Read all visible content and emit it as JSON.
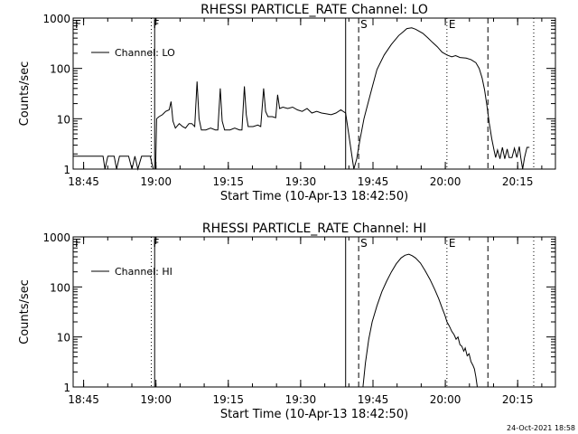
{
  "footer": {
    "timestamp": "24-Oct-2021 18:58"
  },
  "chart_data": [
    {
      "type": "line",
      "title": "RHESSI PARTICLE_RATE Channel: LO",
      "xlabel": "Start Time (10-Apr-13 18:42:50)",
      "ylabel": "Counts/sec",
      "x_unit": "minutes since 18:42:50",
      "xlim": [
        0,
        100
      ],
      "ylim": [
        1,
        1000
      ],
      "yscale": "log",
      "x_ticks": [
        {
          "x": 2.17,
          "label": "18:45"
        },
        {
          "x": 17.17,
          "label": "19:00"
        },
        {
          "x": 32.17,
          "label": "19:15"
        },
        {
          "x": 47.17,
          "label": "19:30"
        },
        {
          "x": 62.17,
          "label": "19:45"
        },
        {
          "x": 77.17,
          "label": "20:00"
        },
        {
          "x": 92.17,
          "label": "20:15"
        }
      ],
      "y_ticks": [
        {
          "y": 1,
          "label": "1"
        },
        {
          "y": 10,
          "label": "10"
        },
        {
          "y": 100,
          "label": "100"
        },
        {
          "y": 1000,
          "label": "1000"
        }
      ],
      "legend": {
        "label": "Channel: LO",
        "position": "top-left"
      },
      "markers": [
        {
          "label": "F",
          "x": 0,
          "style": "none"
        },
        {
          "label": "F",
          "x": 16.2,
          "style": "dotted"
        },
        {
          "label": "",
          "x": 16.9,
          "style": "solid"
        },
        {
          "label": "",
          "x": 56.5,
          "style": "solid"
        },
        {
          "label": "S",
          "x": 59.2,
          "style": "dashed"
        },
        {
          "label": "E",
          "x": 77.5,
          "style": "dotted"
        },
        {
          "label": "",
          "x": 86.0,
          "style": "dashed"
        },
        {
          "label": "",
          "x": 95.5,
          "style": "dotted"
        }
      ],
      "gaps": [
        [
          56.6,
          58.2
        ]
      ],
      "series": [
        {
          "name": "Channel: LO",
          "points": [
            [
              0,
              1.8
            ],
            [
              5,
              1.8
            ],
            [
              6.2,
              1.8
            ],
            [
              6.6,
              1
            ],
            [
              7.2,
              1.8
            ],
            [
              8.5,
              1.8
            ],
            [
              9,
              1
            ],
            [
              9.6,
              1.8
            ],
            [
              11.5,
              1.8
            ],
            [
              12.2,
              1
            ],
            [
              12.8,
              1.8
            ],
            [
              13.4,
              1
            ],
            [
              14.2,
              1.8
            ],
            [
              16,
              1.8
            ],
            [
              16.6,
              1
            ],
            [
              17.1,
              1
            ],
            [
              17.3,
              10
            ],
            [
              17.8,
              11
            ],
            [
              18.5,
              12
            ],
            [
              19.2,
              14
            ],
            [
              19.9,
              15
            ],
            [
              20.3,
              22
            ],
            [
              20.7,
              9
            ],
            [
              21.2,
              6.5
            ],
            [
              22,
              8
            ],
            [
              22.7,
              7
            ],
            [
              23.3,
              6.5
            ],
            [
              24,
              8
            ],
            [
              24.6,
              8
            ],
            [
              25.2,
              7
            ],
            [
              25.7,
              55
            ],
            [
              26.1,
              10
            ],
            [
              26.6,
              6
            ],
            [
              27.5,
              6
            ],
            [
              28.5,
              6.5
            ],
            [
              29.5,
              6
            ],
            [
              30,
              6
            ],
            [
              30.5,
              40
            ],
            [
              30.9,
              9
            ],
            [
              31.4,
              6
            ],
            [
              32.5,
              6
            ],
            [
              33.5,
              6.5
            ],
            [
              34.5,
              6
            ],
            [
              35,
              6
            ],
            [
              35.5,
              44
            ],
            [
              35.9,
              12
            ],
            [
              36.3,
              7
            ],
            [
              37.3,
              7
            ],
            [
              38.3,
              7.5
            ],
            [
              38.9,
              7
            ],
            [
              39.5,
              40
            ],
            [
              39.9,
              14
            ],
            [
              40.4,
              11
            ],
            [
              41.3,
              11
            ],
            [
              42,
              10.5
            ],
            [
              42.4,
              30
            ],
            [
              42.8,
              16
            ],
            [
              43.5,
              17
            ],
            [
              44.5,
              16
            ],
            [
              45.5,
              17
            ],
            [
              46.5,
              15
            ],
            [
              47.5,
              14
            ],
            [
              48.5,
              16
            ],
            [
              49.5,
              13
            ],
            [
              50.5,
              14
            ],
            [
              51.5,
              13
            ],
            [
              52.5,
              12.5
            ],
            [
              53.5,
              12
            ],
            [
              54.5,
              13
            ],
            [
              55.5,
              15
            ],
            [
              56.5,
              13
            ],
            [
              58.2,
              1
            ],
            [
              58.8,
              1.6
            ],
            [
              59.4,
              3.5
            ],
            [
              60.3,
              10
            ],
            [
              61,
              18
            ],
            [
              62,
              42
            ],
            [
              63,
              95
            ],
            [
              64.5,
              185
            ],
            [
              66,
              300
            ],
            [
              67.5,
              450
            ],
            [
              68.5,
              540
            ],
            [
              69.2,
              620
            ],
            [
              70.2,
              640
            ],
            [
              71,
              600
            ],
            [
              72.5,
              500
            ],
            [
              73.5,
              410
            ],
            [
              74.5,
              330
            ],
            [
              75.5,
              270
            ],
            [
              76.5,
              210
            ],
            [
              77.5,
              185
            ],
            [
              78.5,
              170
            ],
            [
              79.3,
              180
            ],
            [
              80.2,
              165
            ],
            [
              81.5,
              160
            ],
            [
              82.5,
              150
            ],
            [
              83.5,
              130
            ],
            [
              84.2,
              100
            ],
            [
              84.8,
              65
            ],
            [
              85.3,
              38
            ],
            [
              85.8,
              18
            ],
            [
              86.3,
              8
            ],
            [
              86.8,
              4
            ],
            [
              87.3,
              2.3
            ],
            [
              87.6,
              1.7
            ],
            [
              88,
              2.4
            ],
            [
              88.5,
              1.6
            ],
            [
              89,
              2.7
            ],
            [
              89.5,
              1.6
            ],
            [
              90,
              2.5
            ],
            [
              90.4,
              1.7
            ],
            [
              91,
              1.7
            ],
            [
              91.5,
              2.6
            ],
            [
              92,
              1.7
            ],
            [
              92.5,
              2.8
            ],
            [
              92.8,
              1.7
            ],
            [
              93.2,
              1
            ],
            [
              93.6,
              1.7
            ],
            [
              94.1,
              2.7
            ],
            [
              94.6,
              2.7
            ]
          ]
        }
      ]
    },
    {
      "type": "line",
      "title": "RHESSI PARTICLE_RATE Channel: HI",
      "xlabel": "Start Time (10-Apr-13 18:42:50)",
      "ylabel": "Counts/sec",
      "x_unit": "minutes since 18:42:50",
      "xlim": [
        0,
        100
      ],
      "ylim": [
        1,
        1000
      ],
      "yscale": "log",
      "x_ticks": [
        {
          "x": 2.17,
          "label": "18:45"
        },
        {
          "x": 17.17,
          "label": "19:00"
        },
        {
          "x": 32.17,
          "label": "19:15"
        },
        {
          "x": 47.17,
          "label": "19:30"
        },
        {
          "x": 62.17,
          "label": "19:45"
        },
        {
          "x": 77.17,
          "label": "20:00"
        },
        {
          "x": 92.17,
          "label": "20:15"
        }
      ],
      "y_ticks": [
        {
          "y": 1,
          "label": "1"
        },
        {
          "y": 10,
          "label": "10"
        },
        {
          "y": 100,
          "label": "100"
        },
        {
          "y": 1000,
          "label": "1000"
        }
      ],
      "legend": {
        "label": "Channel: HI",
        "position": "top-left"
      },
      "markers": [
        {
          "label": "F",
          "x": 0,
          "style": "none"
        },
        {
          "label": "F",
          "x": 16.2,
          "style": "dotted"
        },
        {
          "label": "",
          "x": 16.9,
          "style": "solid"
        },
        {
          "label": "",
          "x": 56.5,
          "style": "solid"
        },
        {
          "label": "S",
          "x": 59.2,
          "style": "dashed"
        },
        {
          "label": "E",
          "x": 77.5,
          "style": "dotted"
        },
        {
          "label": "",
          "x": 86.0,
          "style": "dashed"
        },
        {
          "label": "",
          "x": 95.5,
          "style": "dotted"
        }
      ],
      "gaps": [],
      "series": [
        {
          "name": "Channel: HI",
          "points": [
            [
              60.1,
              1
            ],
            [
              60.6,
              3
            ],
            [
              61.3,
              9
            ],
            [
              62,
              20
            ],
            [
              63,
              42
            ],
            [
              64,
              80
            ],
            [
              65,
              130
            ],
            [
              66,
              200
            ],
            [
              67,
              290
            ],
            [
              68,
              380
            ],
            [
              68.8,
              430
            ],
            [
              69.6,
              450
            ],
            [
              70.3,
              420
            ],
            [
              71,
              380
            ],
            [
              72,
              300
            ],
            [
              73,
              210
            ],
            [
              74,
              140
            ],
            [
              75,
              88
            ],
            [
              75.8,
              58
            ],
            [
              76.5,
              38
            ],
            [
              77.1,
              27
            ],
            [
              77.5,
              20
            ],
            [
              78,
              16.5
            ],
            [
              78.5,
              13
            ],
            [
              79,
              11
            ],
            [
              79.4,
              9
            ],
            [
              79.8,
              10
            ],
            [
              80.2,
              7
            ],
            [
              80.6,
              6.5
            ],
            [
              81,
              5.2
            ],
            [
              81.3,
              6
            ],
            [
              81.7,
              4.2
            ],
            [
              82.1,
              4.6
            ],
            [
              82.5,
              3.2
            ],
            [
              82.9,
              2.7
            ],
            [
              83.2,
              2.3
            ],
            [
              83.5,
              1.6
            ],
            [
              83.8,
              1
            ]
          ]
        }
      ]
    }
  ]
}
